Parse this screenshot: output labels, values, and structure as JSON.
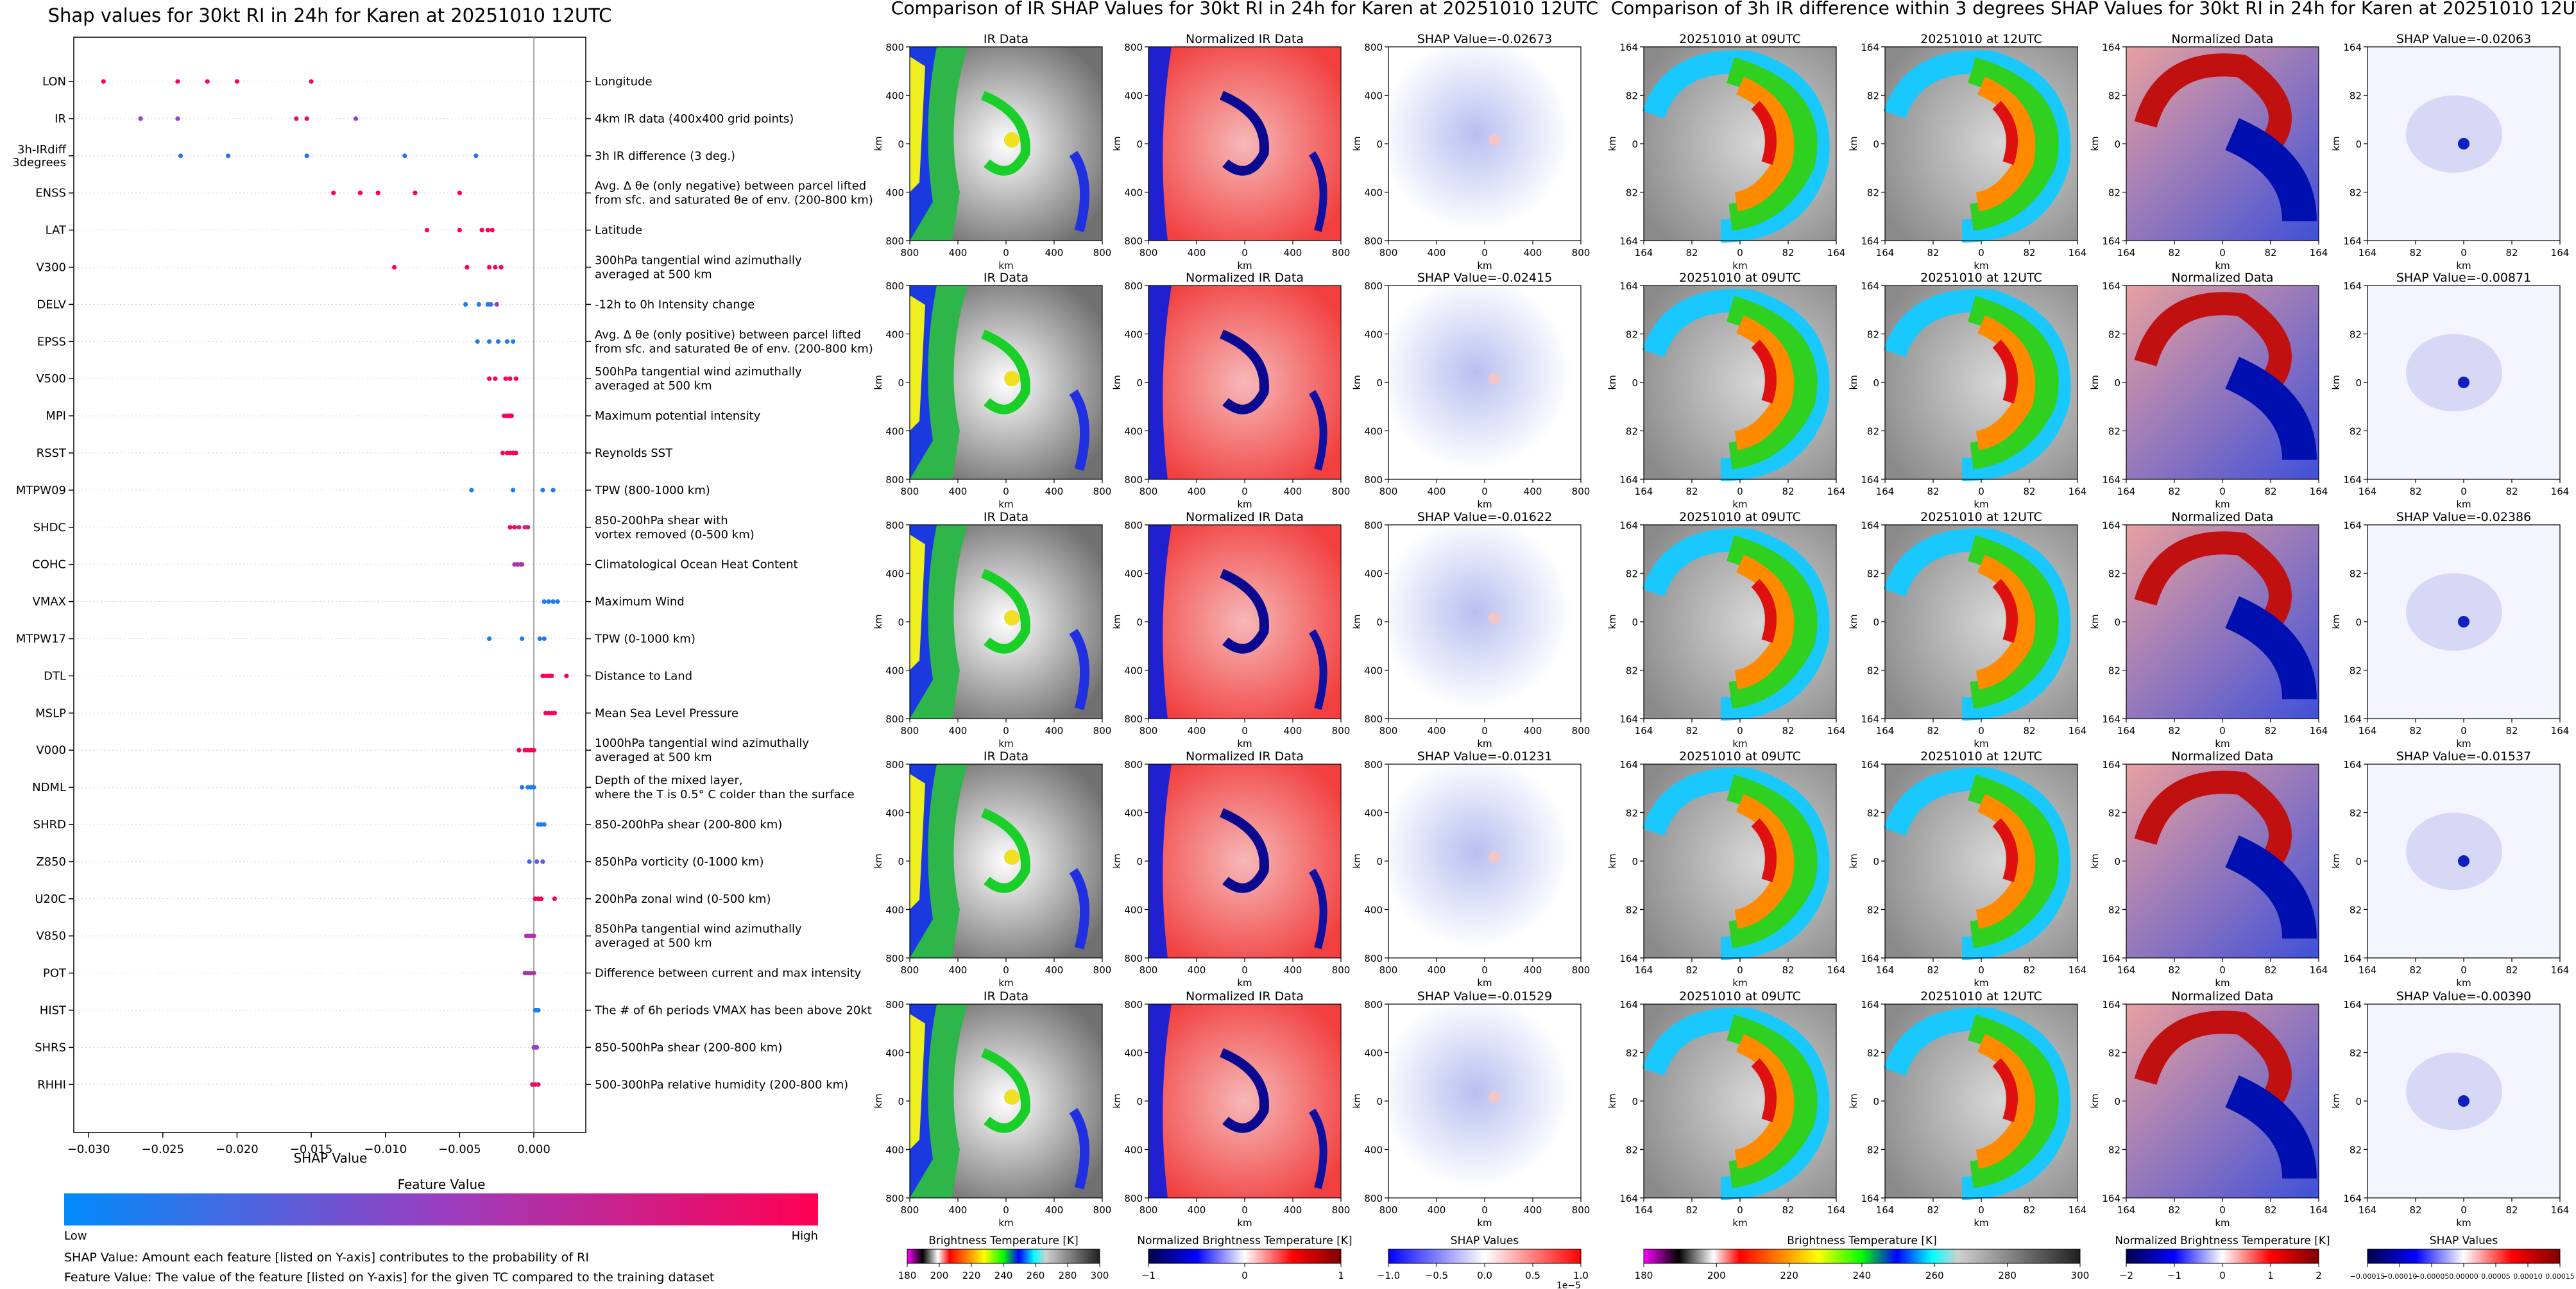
{
  "shap_panel": {
    "title": "Shap values for 30kt RI in 24h for Karen at 20251010 12UTC",
    "xlabel": "SHAP Value",
    "colorbar_title": "Feature Value",
    "colorbar_low": "Low",
    "colorbar_high": "High",
    "colors": {
      "low": "#008bfb",
      "high": "#ff0052",
      "mid": "#9a3ec0"
    },
    "footnote1": "SHAP Value: Amount each feature [listed on Y-axis] contributes to the probability of RI",
    "footnote2": "Feature Value: The value of the feature [listed on Y-axis] for the given TC compared to the training dataset"
  },
  "ir_panel": {
    "title": "Comparison of IR SHAP Values for 30kt RI in 24h for Karen at 20251010 12UTC",
    "col_titles": [
      "IR Data",
      "Normalized IR Data"
    ],
    "shap_titles": [
      "SHAP Value=-0.02673",
      "SHAP Value=-0.02415",
      "SHAP Value=-0.01622",
      "SHAP Value=-0.01231",
      "SHAP Value=-0.01529"
    ],
    "axis_unit": "km",
    "y_ticks": [
      "800",
      "400",
      "0",
      "400",
      "800"
    ],
    "x_ticks": [
      "800",
      "400",
      "0",
      "400",
      "800"
    ],
    "colorbars": [
      {
        "label": "Brightness Temperature [K]",
        "ticks": [
          "180",
          "200",
          "220",
          "240",
          "260",
          "280",
          "300"
        ]
      },
      {
        "label": "Normalized Brightness Temperature [K]",
        "ticks": [
          "−1",
          "0",
          "1"
        ]
      },
      {
        "label": "SHAP Values",
        "ticks": [
          "−1.0",
          "−0.5",
          "0.0",
          "0.5",
          "1.0"
        ],
        "exponent": "1e−5"
      }
    ]
  },
  "diff_panel": {
    "title": "Comparison of 3h IR difference within 3 degrees SHAP Values for 30kt RI in 24h for Karen at 20251010 12UTC",
    "col_titles": [
      "20251010 at 09UTC",
      "20251010 at 12UTC",
      "Normalized Data"
    ],
    "shap_titles": [
      "SHAP Value=-0.02063",
      "SHAP Value=-0.00871",
      "SHAP Value=-0.02386",
      "SHAP Value=-0.01537",
      "SHAP Value=-0.00390"
    ],
    "axis_unit": "km",
    "y_ticks": [
      "164",
      "82",
      "0",
      "82",
      "164"
    ],
    "x_ticks": [
      "164",
      "82",
      "0",
      "82",
      "164"
    ],
    "colorbars": [
      {
        "label": "Brightness Temperature [K]",
        "ticks": [
          "180",
          "200",
          "220",
          "240",
          "260",
          "280",
          "300"
        ]
      },
      {
        "label": "Normalized Brightness Temperature [K]",
        "ticks": [
          "−2",
          "−1",
          "0",
          "1",
          "2"
        ]
      },
      {
        "label": "SHAP Values",
        "ticks": [
          "−0.00015",
          "−0.00010",
          "−0.00005",
          "0.00000",
          "0.00005",
          "0.00010",
          "0.00015"
        ]
      }
    ]
  },
  "chart_data": {
    "type": "scatter",
    "title": "Shap values for 30kt RI in 24h for Karen at 20251010 12UTC",
    "xlabel": "SHAP Value",
    "ylabel": "",
    "xlim": [
      -0.031,
      0.0035
    ],
    "x_ticks": [
      -0.03,
      -0.025,
      -0.02,
      -0.015,
      -0.01,
      -0.005,
      0.0
    ],
    "x_tick_labels": [
      "−0.030",
      "−0.025",
      "−0.020",
      "−0.015",
      "−0.010",
      "−0.005",
      "0.000"
    ],
    "features": [
      {
        "code": "LON",
        "desc": "Longitude",
        "points": [
          [
            -0.029,
            1.0
          ],
          [
            -0.024,
            1.0
          ],
          [
            -0.022,
            1.0
          ],
          [
            -0.02,
            1.0
          ],
          [
            -0.015,
            1.0
          ]
        ]
      },
      {
        "code": "IR",
        "desc": "4km IR data (400x400 grid points)",
        "points": [
          [
            -0.0265,
            0.5
          ],
          [
            -0.024,
            0.5
          ],
          [
            -0.016,
            0.9
          ],
          [
            -0.0153,
            0.9
          ],
          [
            -0.012,
            0.5
          ]
        ]
      },
      {
        "code": "3h-IRdiff\n3degrees",
        "desc": "3h IR difference (3 deg.)",
        "points": [
          [
            -0.0238,
            0.15
          ],
          [
            -0.0206,
            0.15
          ],
          [
            -0.0153,
            0.15
          ],
          [
            -0.0087,
            0.15
          ],
          [
            -0.0039,
            0.15
          ]
        ]
      },
      {
        "code": "ENSS",
        "desc": "Avg. Δ θe (only negative) between parcel lifted\nfrom sfc. and saturated θe of env. (200-800 km)",
        "points": [
          [
            -0.0135,
            1.0
          ],
          [
            -0.0117,
            1.0
          ],
          [
            -0.0105,
            1.0
          ],
          [
            -0.008,
            1.0
          ],
          [
            -0.005,
            1.0
          ]
        ]
      },
      {
        "code": "LAT",
        "desc": "Latitude",
        "points": [
          [
            -0.0072,
            1.0
          ],
          [
            -0.005,
            1.0
          ],
          [
            -0.0035,
            1.0
          ],
          [
            -0.0031,
            1.0
          ],
          [
            -0.0028,
            1.0
          ]
        ]
      },
      {
        "code": "V300",
        "desc": "300hPa tangential wind azimuthally\naveraged at 500 km",
        "points": [
          [
            -0.0094,
            1.0
          ],
          [
            -0.0045,
            1.0
          ],
          [
            -0.003,
            1.0
          ],
          [
            -0.0026,
            1.0
          ],
          [
            -0.0022,
            1.0
          ]
        ]
      },
      {
        "code": "DELV",
        "desc": "-12h to 0h Intensity change",
        "points": [
          [
            -0.0046,
            0.1
          ],
          [
            -0.0037,
            0.1
          ],
          [
            -0.0031,
            0.1
          ],
          [
            -0.0029,
            0.2
          ],
          [
            -0.0025,
            0.5
          ]
        ]
      },
      {
        "code": "EPSS",
        "desc": "Avg. Δ θe (only positive) between parcel lifted\nfrom sfc. and saturated θe of env. (200-800 km)",
        "points": [
          [
            -0.0038,
            0.1
          ],
          [
            -0.003,
            0.1
          ],
          [
            -0.0024,
            0.1
          ],
          [
            -0.0018,
            0.1
          ],
          [
            -0.0014,
            0.1
          ]
        ]
      },
      {
        "code": "V500",
        "desc": "500hPa tangential wind azimuthally\naveraged at 500 km",
        "points": [
          [
            -0.003,
            1.0
          ],
          [
            -0.0026,
            1.0
          ],
          [
            -0.0019,
            1.0
          ],
          [
            -0.0016,
            1.0
          ],
          [
            -0.0012,
            1.0
          ]
        ]
      },
      {
        "code": "MPI",
        "desc": "Maximum potential intensity",
        "points": [
          [
            -0.002,
            1.0
          ],
          [
            -0.0018,
            1.0
          ],
          [
            -0.0017,
            1.0
          ],
          [
            -0.0016,
            1.0
          ],
          [
            -0.0015,
            1.0
          ]
        ]
      },
      {
        "code": "RSST",
        "desc": "Reynolds SST",
        "points": [
          [
            -0.0021,
            1.0
          ],
          [
            -0.0018,
            1.0
          ],
          [
            -0.0016,
            1.0
          ],
          [
            -0.0014,
            1.0
          ],
          [
            -0.0012,
            1.0
          ]
        ]
      },
      {
        "code": "MTPW09",
        "desc": "TPW (800-1000 km)",
        "points": [
          [
            -0.0042,
            0.1
          ],
          [
            -0.0014,
            0.1
          ],
          [
            0.0006,
            0.1
          ],
          [
            0.0013,
            0.1
          ]
        ]
      },
      {
        "code": "SHDC",
        "desc": "850-200hPa shear with\nvortex removed (0-500 km)",
        "points": [
          [
            -0.0016,
            1.0
          ],
          [
            -0.0013,
            1.0
          ],
          [
            -0.001,
            0.8
          ],
          [
            -0.0006,
            0.8
          ],
          [
            -0.0004,
            0.8
          ]
        ]
      },
      {
        "code": "COHC",
        "desc": "Climatological Ocean Heat Content",
        "points": [
          [
            -0.0013,
            0.6
          ],
          [
            -0.0011,
            0.6
          ],
          [
            -0.0009,
            0.6
          ],
          [
            -0.0008,
            0.6
          ]
        ]
      },
      {
        "code": "VMAX",
        "desc": "Maximum Wind",
        "points": [
          [
            0.0007,
            0.1
          ],
          [
            0.001,
            0.1
          ],
          [
            0.0013,
            0.1
          ],
          [
            0.0016,
            0.1
          ]
        ]
      },
      {
        "code": "MTPW17",
        "desc": "TPW (0-1000 km)",
        "points": [
          [
            -0.003,
            0.1
          ],
          [
            -0.0008,
            0.1
          ],
          [
            0.0004,
            0.1
          ],
          [
            0.0007,
            0.1
          ]
        ]
      },
      {
        "code": "DTL",
        "desc": "Distance to Land",
        "points": [
          [
            0.0006,
            1.0
          ],
          [
            0.0008,
            1.0
          ],
          [
            0.001,
            1.0
          ],
          [
            0.0012,
            1.0
          ],
          [
            0.0022,
            1.0
          ]
        ]
      },
      {
        "code": "MSLP",
        "desc": "Mean Sea Level Pressure",
        "points": [
          [
            0.0008,
            1.0
          ],
          [
            0.001,
            1.0
          ],
          [
            0.0012,
            1.0
          ],
          [
            0.0014,
            1.0
          ]
        ]
      },
      {
        "code": "V000",
        "desc": "1000hPa tangential wind azimuthally\naveraged at 500 km",
        "points": [
          [
            -0.001,
            1.0
          ],
          [
            -0.0006,
            1.0
          ],
          [
            -0.0004,
            1.0
          ],
          [
            -0.0002,
            1.0
          ],
          [
            0.0,
            1.0
          ]
        ]
      },
      {
        "code": "NDML",
        "desc": "Depth of the mixed layer,\nwhere the T is 0.5° C colder than the surface",
        "points": [
          [
            -0.0008,
            0.1
          ],
          [
            -0.0004,
            0.1
          ],
          [
            -0.0002,
            0.1
          ],
          [
            0.0,
            0.1
          ]
        ]
      },
      {
        "code": "SHRD",
        "desc": "850-200hPa shear (200-800 km)",
        "points": [
          [
            0.0003,
            0.1
          ],
          [
            0.0005,
            0.1
          ],
          [
            0.0007,
            0.1
          ]
        ]
      },
      {
        "code": "Z850",
        "desc": "850hPa vorticity (0-1000 km)",
        "points": [
          [
            -0.0003,
            0.2
          ],
          [
            0.0002,
            0.3
          ],
          [
            0.0006,
            0.3
          ]
        ]
      },
      {
        "code": "U20C",
        "desc": "200hPa zonal wind (0-500 km)",
        "points": [
          [
            0.0001,
            1.0
          ],
          [
            0.0003,
            1.0
          ],
          [
            0.0005,
            1.0
          ],
          [
            0.0014,
            1.0
          ]
        ]
      },
      {
        "code": "V850",
        "desc": "850hPa tangential wind azimuthally\naveraged at 500 km",
        "points": [
          [
            -0.0005,
            0.6
          ],
          [
            -0.0003,
            0.6
          ],
          [
            -0.0001,
            0.6
          ],
          [
            0.0,
            0.6
          ]
        ]
      },
      {
        "code": "POT",
        "desc": "Difference between current and max intensity",
        "points": [
          [
            -0.0006,
            0.6
          ],
          [
            -0.0004,
            0.6
          ],
          [
            -0.0002,
            0.6
          ],
          [
            0.0,
            0.6
          ]
        ]
      },
      {
        "code": "HIST",
        "desc": "The # of 6h periods VMAX has been above 20kt",
        "points": [
          [
            0.0001,
            0.1
          ],
          [
            0.0002,
            0.1
          ],
          [
            0.0003,
            0.1
          ]
        ]
      },
      {
        "code": "SHRS",
        "desc": "850-500hPa shear (200-800 km)",
        "points": [
          [
            0.0,
            0.5
          ],
          [
            0.0001,
            0.5
          ],
          [
            0.0002,
            0.5
          ]
        ]
      },
      {
        "code": "RHHI",
        "desc": "500-300hPa relative humidity (200-800 km)",
        "points": [
          [
            -0.0001,
            0.9
          ],
          [
            0.0001,
            0.9
          ],
          [
            0.0003,
            0.9
          ]
        ]
      }
    ]
  }
}
